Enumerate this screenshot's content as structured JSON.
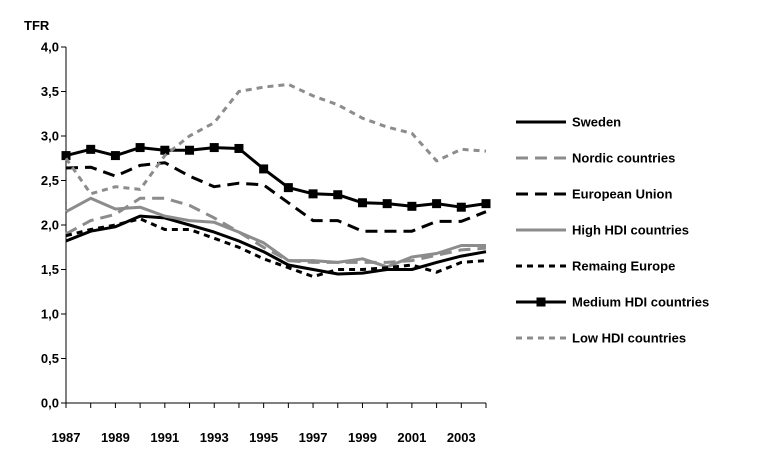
{
  "chart_data": {
    "type": "line",
    "ylabel": "TFR",
    "xlabel": "",
    "ylim": [
      0,
      4.0
    ],
    "ytick_labels": [
      "0,0",
      "0,5",
      "1,0",
      "1,5",
      "2,0",
      "2,5",
      "3,0",
      "3,5",
      "4,0"
    ],
    "xtick_labels": [
      "1987",
      "1989",
      "1991",
      "1993",
      "1995",
      "1997",
      "1999",
      "2001",
      "2003"
    ],
    "x": [
      1987,
      1988,
      1989,
      1990,
      1991,
      1992,
      1993,
      1994,
      1995,
      1996,
      1997,
      1998,
      1999,
      2000,
      2001,
      2002,
      2003,
      2004
    ],
    "legend_position": "right",
    "grid": false,
    "series": [
      {
        "name": "Sweden",
        "color": "#000000",
        "style": "solid",
        "width": 3,
        "marker": "none",
        "values": [
          1.82,
          1.93,
          1.98,
          2.1,
          2.08,
          2.0,
          1.92,
          1.82,
          1.7,
          1.55,
          1.5,
          1.45,
          1.46,
          1.5,
          1.5,
          1.58,
          1.65,
          1.7
        ]
      },
      {
        "name": "Nordic countries",
        "color": "#8c8c8c",
        "style": "dash",
        "width": 3,
        "marker": "none",
        "values": [
          1.9,
          2.05,
          2.12,
          2.3,
          2.3,
          2.22,
          2.08,
          1.92,
          1.75,
          1.6,
          1.58,
          1.58,
          1.58,
          1.58,
          1.6,
          1.66,
          1.72,
          1.74
        ]
      },
      {
        "name": "European Union",
        "color": "#000000",
        "style": "dash",
        "width": 3,
        "marker": "none",
        "values": [
          2.64,
          2.65,
          2.55,
          2.67,
          2.7,
          2.55,
          2.43,
          2.47,
          2.45,
          2.25,
          2.05,
          2.05,
          1.93,
          1.93,
          1.93,
          2.04,
          2.04,
          2.15
        ]
      },
      {
        "name": "High HDI countries",
        "color": "#8c8c8c",
        "style": "solid",
        "width": 3,
        "marker": "none",
        "values": [
          2.15,
          2.3,
          2.18,
          2.2,
          2.1,
          2.05,
          2.03,
          1.92,
          1.8,
          1.6,
          1.6,
          1.58,
          1.62,
          1.53,
          1.64,
          1.68,
          1.77,
          1.77
        ]
      },
      {
        "name": "Remaing Europe",
        "color": "#000000",
        "style": "dot",
        "width": 3,
        "marker": "none",
        "values": [
          1.88,
          1.95,
          2.0,
          2.07,
          1.95,
          1.95,
          1.85,
          1.75,
          1.62,
          1.52,
          1.42,
          1.5,
          1.5,
          1.52,
          1.55,
          1.47,
          1.58,
          1.6
        ]
      },
      {
        "name": "Medium HDI countries",
        "color": "#000000",
        "style": "solid",
        "width": 3,
        "marker": "square",
        "values": [
          2.78,
          2.85,
          2.78,
          2.87,
          2.84,
          2.84,
          2.87,
          2.86,
          2.63,
          2.42,
          2.35,
          2.34,
          2.25,
          2.24,
          2.21,
          2.24,
          2.2,
          2.24
        ]
      },
      {
        "name": "Low HDI countries",
        "color": "#8c8c8c",
        "style": "dot",
        "width": 3,
        "marker": "none",
        "values": [
          2.75,
          2.35,
          2.43,
          2.4,
          2.78,
          3.0,
          3.15,
          3.5,
          3.55,
          3.58,
          3.45,
          3.35,
          3.2,
          3.1,
          3.03,
          2.72,
          2.85,
          2.83
        ]
      }
    ]
  }
}
